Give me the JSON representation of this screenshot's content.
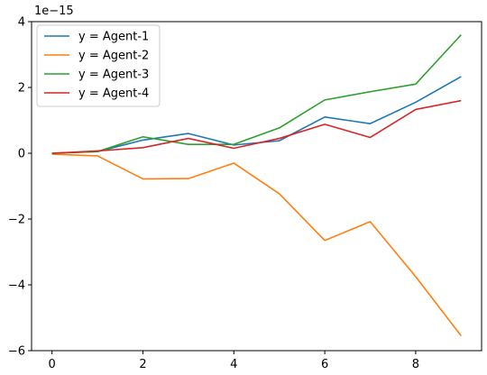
{
  "chart_data": {
    "type": "line",
    "offset_label": "1e−15",
    "x": [
      0,
      1,
      2,
      3,
      4,
      5,
      6,
      7,
      8,
      9
    ],
    "xlim": [
      -0.45,
      9.45
    ],
    "ylim": [
      -6,
      4
    ],
    "xticks": [
      0,
      2,
      4,
      6,
      8
    ],
    "yticks": [
      -6,
      -4,
      -2,
      0,
      2,
      4
    ],
    "xtick_labels": [
      "0",
      "2",
      "4",
      "6",
      "8"
    ],
    "ytick_labels": [
      "−6",
      "−4",
      "−2",
      "0",
      "2",
      "4"
    ],
    "grid": false,
    "legend_position": "top-left",
    "series": [
      {
        "name": "y = Agent-1",
        "color": "#1f77b4",
        "values": [
          0.0,
          0.05,
          0.4,
          0.6,
          0.25,
          0.38,
          1.1,
          0.9,
          1.55,
          2.33
        ]
      },
      {
        "name": "y = Agent-2",
        "color": "#ff7f0e",
        "values": [
          -0.03,
          -0.08,
          -0.78,
          -0.77,
          -0.3,
          -1.23,
          -2.65,
          -2.08,
          -3.75,
          -5.55
        ]
      },
      {
        "name": "y = Agent-3",
        "color": "#2ca02c",
        "values": [
          0.0,
          0.05,
          0.5,
          0.27,
          0.27,
          0.77,
          1.62,
          1.87,
          2.1,
          3.6
        ]
      },
      {
        "name": "y = Agent-4",
        "color": "#d62728",
        "values": [
          0.0,
          0.07,
          0.17,
          0.45,
          0.15,
          0.45,
          0.88,
          0.48,
          1.33,
          1.6
        ]
      }
    ]
  }
}
